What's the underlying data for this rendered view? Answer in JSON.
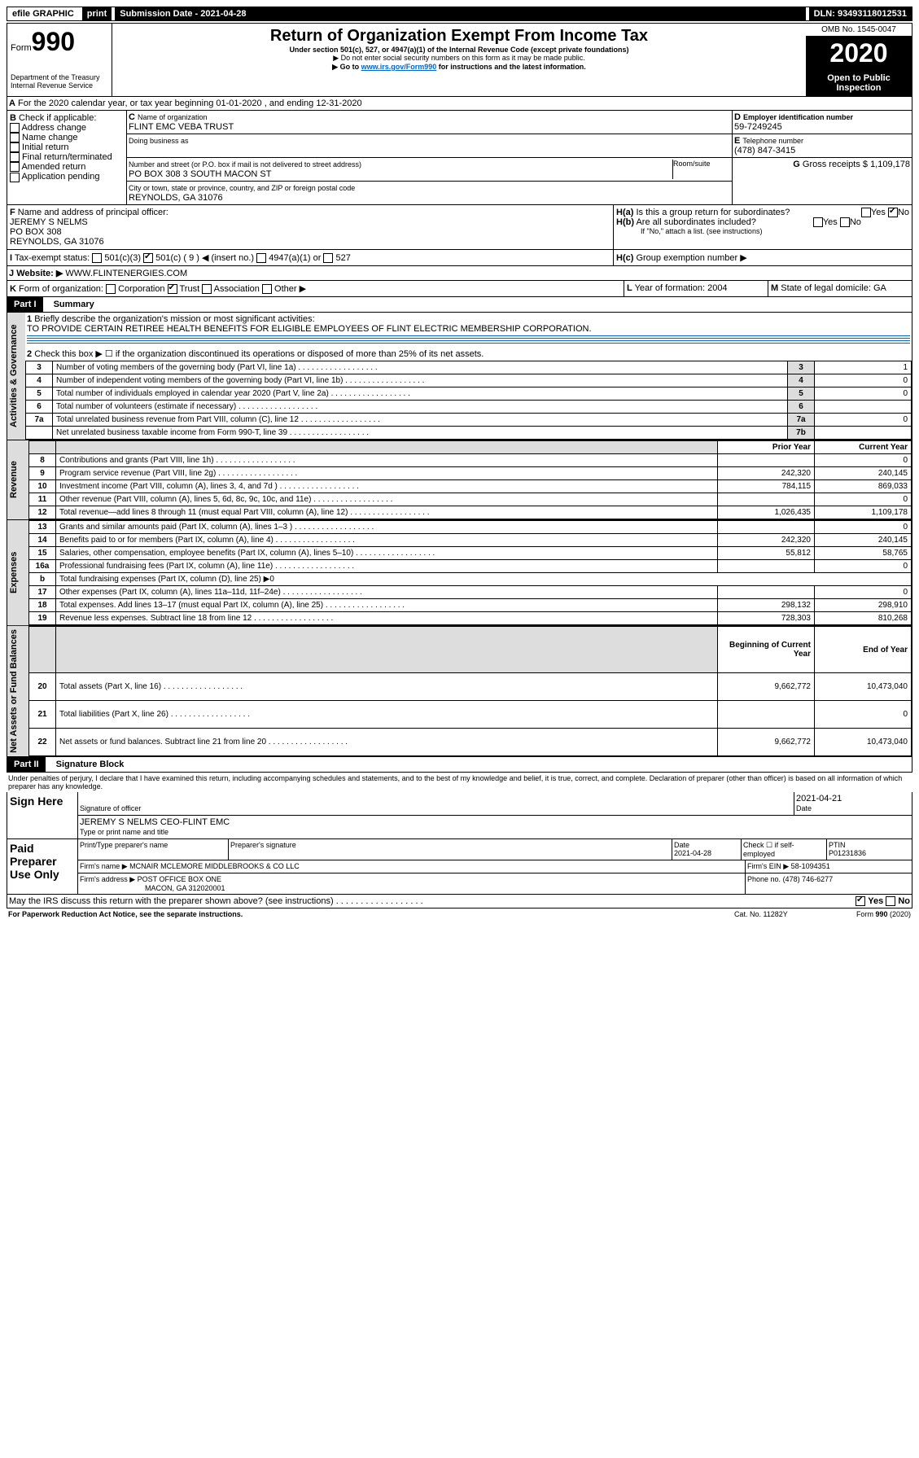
{
  "topbar": {
    "efile": "efile GRAPHIC",
    "print": "print",
    "subdate_lbl": "Submission Date - 2021-04-28",
    "dln": "DLN: 93493118012531"
  },
  "header": {
    "form_word": "Form",
    "form_num": "990",
    "dept": "Department of the Treasury\nInternal Revenue Service",
    "title": "Return of Organization Exempt From Income Tax",
    "subtitle": "Under section 501(c), 527, or 4947(a)(1) of the Internal Revenue Code (except private foundations)",
    "note1": "▶ Do not enter social security numbers on this form as it may be made public.",
    "note2_a": "▶ Go to ",
    "note2_link": "www.irs.gov/Form990",
    "note2_b": " for instructions and the latest information.",
    "omb": "OMB No. 1545-0047",
    "year": "2020",
    "inspect": "Open to Public Inspection"
  },
  "A": {
    "text": "For the 2020 calendar year, or tax year beginning 01-01-2020     , and ending 12-31-2020"
  },
  "B": {
    "label": "Check if applicable:",
    "opts": [
      "Address change",
      "Name change",
      "Initial return",
      "Final return/terminated",
      "Amended return",
      "Application pending"
    ]
  },
  "C": {
    "name_lbl": "Name of organization",
    "name": "FLINT EMC VEBA TRUST",
    "dba_lbl": "Doing business as",
    "addr_lbl": "Number and street (or P.O. box if mail is not delivered to street address)",
    "addr": "PO BOX 308 3 SOUTH MACON ST",
    "room_lbl": "Room/suite",
    "city_lbl": "City or town, state or province, country, and ZIP or foreign postal code",
    "city": "REYNOLDS, GA  31076"
  },
  "D": {
    "lbl": "Employer identification number",
    "val": "59-7249245"
  },
  "E": {
    "lbl": "Telephone number",
    "val": "(478) 847-3415"
  },
  "G": {
    "lbl": "Gross receipts $",
    "val": "1,109,178"
  },
  "F": {
    "lbl": "Name and address of principal officer:",
    "name": "JEREMY S NELMS",
    "addr1": "PO BOX 308",
    "addr2": "REYNOLDS, GA  31076"
  },
  "H": {
    "a": "Is this a group return for subordinates?",
    "b": "Are all subordinates included?",
    "b_note": "If \"No,\" attach a list. (see instructions)",
    "c": "Group exemption number ▶",
    "yes": "Yes",
    "no": "No"
  },
  "I": {
    "lbl": "Tax-exempt status:",
    "o1": "501(c)(3)",
    "o2": "501(c) ( 9 ) ◀ (insert no.)",
    "o3": "4947(a)(1) or",
    "o4": "527"
  },
  "J": {
    "lbl": "Website: ▶",
    "val": "WWW.FLINTENERGIES.COM"
  },
  "K": {
    "lbl": "Form of organization:",
    "o1": "Corporation",
    "o2": "Trust",
    "o3": "Association",
    "o4": "Other ▶"
  },
  "L": {
    "lbl": "Year of formation:",
    "val": "2004"
  },
  "M": {
    "lbl": "State of legal domicile:",
    "val": "GA"
  },
  "part1": {
    "title": "Part I",
    "subtitle": "Summary",
    "side1": "Activities & Governance",
    "side2": "Revenue",
    "side3": "Expenses",
    "side4": "Net Assets or Fund Balances",
    "l1": "Briefly describe the organization's mission or most significant activities:",
    "l1val": "TO PROVIDE CERTAIN RETIREE HEALTH BENEFITS FOR ELIGIBLE EMPLOYEES OF FLINT ELECTRIC MEMBERSHIP CORPORATION.",
    "l2": "Check this box ▶ ☐  if the organization discontinued its operations or disposed of more than 25% of its net assets.",
    "rows_gov": [
      {
        "n": "3",
        "t": "Number of voting members of the governing body (Part VI, line 1a)",
        "k": "3",
        "v": "1"
      },
      {
        "n": "4",
        "t": "Number of independent voting members of the governing body (Part VI, line 1b)",
        "k": "4",
        "v": "0"
      },
      {
        "n": "5",
        "t": "Total number of individuals employed in calendar year 2020 (Part V, line 2a)",
        "k": "5",
        "v": "0"
      },
      {
        "n": "6",
        "t": "Total number of volunteers (estimate if necessary)",
        "k": "6",
        "v": ""
      },
      {
        "n": "7a",
        "t": "Total unrelated business revenue from Part VIII, column (C), line 12",
        "k": "7a",
        "v": "0"
      },
      {
        "n": "",
        "t": "Net unrelated business taxable income from Form 990-T, line 39",
        "k": "7b",
        "v": ""
      }
    ],
    "hdr_prior": "Prior Year",
    "hdr_curr": "Current Year",
    "hdr_beg": "Beginning of Current Year",
    "hdr_end": "End of Year",
    "rev": [
      {
        "n": "8",
        "t": "Contributions and grants (Part VIII, line 1h)",
        "p": "",
        "c": "0"
      },
      {
        "n": "9",
        "t": "Program service revenue (Part VIII, line 2g)",
        "p": "242,320",
        "c": "240,145"
      },
      {
        "n": "10",
        "t": "Investment income (Part VIII, column (A), lines 3, 4, and 7d )",
        "p": "784,115",
        "c": "869,033"
      },
      {
        "n": "11",
        "t": "Other revenue (Part VIII, column (A), lines 5, 6d, 8c, 9c, 10c, and 11e)",
        "p": "",
        "c": "0"
      },
      {
        "n": "12",
        "t": "Total revenue—add lines 8 through 11 (must equal Part VIII, column (A), line 12)",
        "p": "1,026,435",
        "c": "1,109,178"
      }
    ],
    "exp": [
      {
        "n": "13",
        "t": "Grants and similar amounts paid (Part IX, column (A), lines 1–3 )",
        "p": "",
        "c": "0"
      },
      {
        "n": "14",
        "t": "Benefits paid to or for members (Part IX, column (A), line 4)",
        "p": "242,320",
        "c": "240,145"
      },
      {
        "n": "15",
        "t": "Salaries, other compensation, employee benefits (Part IX, column (A), lines 5–10)",
        "p": "55,812",
        "c": "58,765"
      },
      {
        "n": "16a",
        "t": "Professional fundraising fees (Part IX, column (A), line 11e)",
        "p": "",
        "c": "0"
      },
      {
        "n": "b",
        "t": "Total fundraising expenses (Part IX, column (D), line 25) ▶0",
        "p": null,
        "c": null
      },
      {
        "n": "17",
        "t": "Other expenses (Part IX, column (A), lines 11a–11d, 11f–24e)",
        "p": "",
        "c": "0"
      },
      {
        "n": "18",
        "t": "Total expenses. Add lines 13–17 (must equal Part IX, column (A), line 25)",
        "p": "298,132",
        "c": "298,910"
      },
      {
        "n": "19",
        "t": "Revenue less expenses. Subtract line 18 from line 12",
        "p": "728,303",
        "c": "810,268"
      }
    ],
    "net": [
      {
        "n": "20",
        "t": "Total assets (Part X, line 16)",
        "p": "9,662,772",
        "c": "10,473,040"
      },
      {
        "n": "21",
        "t": "Total liabilities (Part X, line 26)",
        "p": "",
        "c": "0"
      },
      {
        "n": "22",
        "t": "Net assets or fund balances. Subtract line 21 from line 20",
        "p": "9,662,772",
        "c": "10,473,040"
      }
    ]
  },
  "part2": {
    "title": "Part II",
    "subtitle": "Signature Block",
    "perjury": "Under penalties of perjury, I declare that I have examined this return, including accompanying schedules and statements, and to the best of my knowledge and belief, it is true, correct, and complete. Declaration of preparer (other than officer) is based on all information of which preparer has any knowledge.",
    "sign_here": "Sign Here",
    "sig_lbl": "Signature of officer",
    "date": "2021-04-21",
    "date_lbl": "Date",
    "name": "JEREMY S NELMS CEO-FLINT EMC",
    "name_lbl": "Type or print name and title",
    "paid": "Paid Preparer Use Only",
    "pp_name_lbl": "Print/Type preparer's name",
    "pp_sig_lbl": "Preparer's signature",
    "pp_date_lbl": "Date",
    "pp_date": "2021-04-28",
    "pp_check": "Check ☐ if self-employed",
    "ptin_lbl": "PTIN",
    "ptin": "P01231836",
    "firm_lbl": "Firm's name    ▶",
    "firm": "MCNAIR MCLEMORE MIDDLEBROOKS & CO LLC",
    "ein_lbl": "Firm's EIN ▶",
    "ein": "58-1094351",
    "faddr_lbl": "Firm's address ▶",
    "faddr1": "POST OFFICE BOX ONE",
    "faddr2": "MACON, GA  312020001",
    "phone_lbl": "Phone no.",
    "phone": "(478) 746-6277",
    "discuss": "May the IRS discuss this return with the preparer shown above? (see instructions)"
  },
  "footer": {
    "pra": "For Paperwork Reduction Act Notice, see the separate instructions.",
    "cat": "Cat. No. 11282Y",
    "form": "Form 990 (2020)"
  }
}
